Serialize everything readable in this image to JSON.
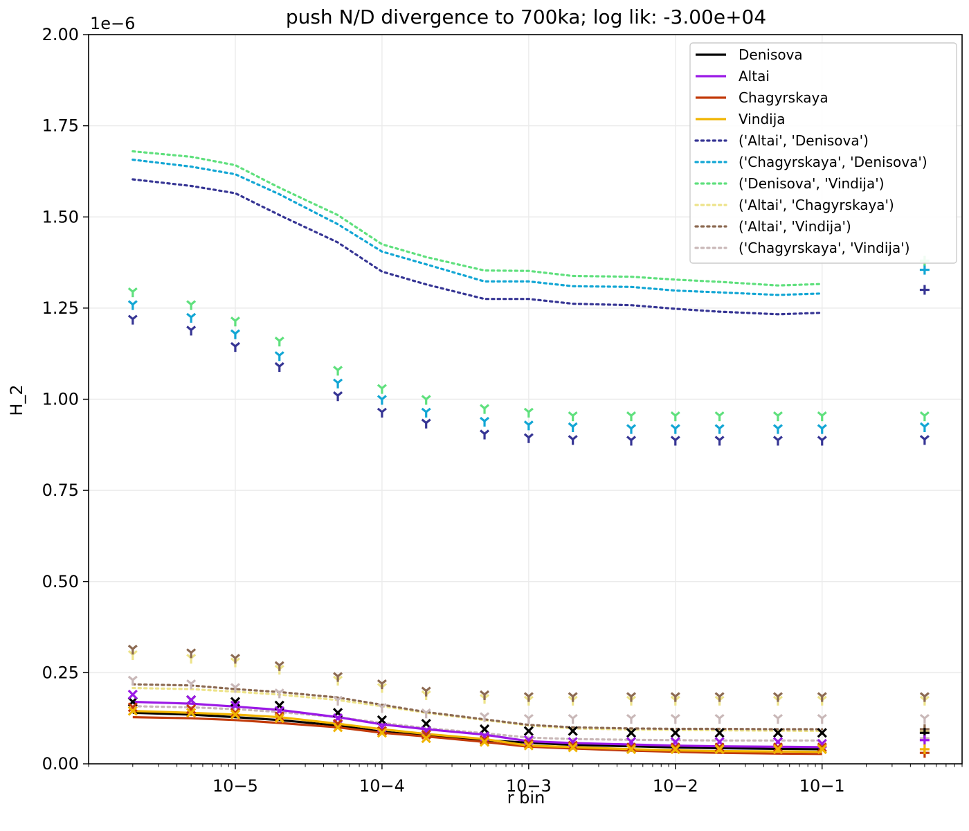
{
  "chart_data": {
    "type": "line",
    "title": "push N/D divergence to 700ka; log lik: -3.00e+04",
    "xlabel": "r bin",
    "ylabel": "H_2",
    "y_offset_text": "1e−6",
    "x_scale": "log",
    "xlim": [
      1e-06,
      0.9
    ],
    "ylim": [
      0,
      2.0
    ],
    "grid": true,
    "legend_position": "top-right",
    "x_tick_labels": [
      "10−5",
      "10−4",
      "10−3",
      "10−2",
      "10−1"
    ],
    "y_tick_labels": [
      "0.00",
      "0.25",
      "0.50",
      "0.75",
      "1.00",
      "1.25",
      "1.50",
      "1.75",
      "2.00"
    ],
    "x": [
      2e-06,
      5e-06,
      1e-05,
      2e-05,
      5e-05,
      0.0001,
      0.0002,
      0.0005,
      0.001,
      0.002,
      0.005,
      0.01,
      0.02,
      0.05,
      0.1
    ],
    "series": [
      {
        "name": "Denisova",
        "style": "solid",
        "color": "#000000",
        "model": [
          0.14,
          0.135,
          0.128,
          0.12,
          0.105,
          0.088,
          0.078,
          0.065,
          0.058,
          0.052,
          0.048,
          0.045,
          0.043,
          0.041,
          0.04
        ],
        "observed": [
          0.17,
          0.175,
          0.17,
          0.16,
          0.14,
          0.12,
          0.11,
          0.095,
          0.09,
          0.09,
          0.085,
          0.085,
          0.085,
          0.085,
          0.085
        ]
      },
      {
        "name": "Altai",
        "style": "solid",
        "color": "#9b19e6",
        "model": [
          0.17,
          0.165,
          0.157,
          0.148,
          0.128,
          0.108,
          0.095,
          0.08,
          0.062,
          0.057,
          0.053,
          0.05,
          0.048,
          0.047,
          0.046
        ],
        "observed": [
          0.19,
          0.175,
          0.16,
          0.145,
          0.125,
          0.1,
          0.09,
          0.075,
          0.065,
          0.06,
          0.06,
          0.06,
          0.06,
          0.06,
          0.055
        ]
      },
      {
        "name": "Chagyrskaya",
        "style": "solid",
        "color": "#c23b0a",
        "model": [
          0.128,
          0.125,
          0.12,
          0.112,
          0.1,
          0.085,
          0.075,
          0.06,
          0.047,
          0.042,
          0.036,
          0.033,
          0.03,
          0.028,
          0.027
        ],
        "observed": [
          0.155,
          0.15,
          0.14,
          0.13,
          0.11,
          0.09,
          0.08,
          0.065,
          0.055,
          0.05,
          0.045,
          0.045,
          0.045,
          0.045,
          0.045
        ]
      },
      {
        "name": "Vindija",
        "style": "solid",
        "color": "#f0b400",
        "model": [
          0.145,
          0.14,
          0.135,
          0.128,
          0.11,
          0.095,
          0.082,
          0.068,
          0.05,
          0.046,
          0.04,
          0.037,
          0.035,
          0.034,
          0.033
        ],
        "observed": [
          0.145,
          0.14,
          0.135,
          0.125,
          0.1,
          0.085,
          0.07,
          0.06,
          0.05,
          0.045,
          0.04,
          0.04,
          0.04,
          0.04,
          0.04
        ]
      },
      {
        "name": "('Altai', 'Denisova')",
        "style": "dotted",
        "color": "#363594",
        "model": [
          1.603,
          1.585,
          1.565,
          1.505,
          1.43,
          1.35,
          1.315,
          1.275,
          1.275,
          1.262,
          1.258,
          1.248,
          1.24,
          1.233,
          1.237
        ],
        "observed": [
          1.22,
          1.19,
          1.145,
          1.09,
          1.01,
          0.965,
          0.935,
          0.905,
          0.895,
          0.89,
          0.888,
          0.888,
          0.888,
          0.888,
          0.888
        ]
      },
      {
        "name": "('Chagyrskaya', 'Denisova')",
        "style": "dotted",
        "color": "#12a6d4",
        "model": [
          1.657,
          1.638,
          1.617,
          1.562,
          1.48,
          1.405,
          1.37,
          1.323,
          1.323,
          1.31,
          1.308,
          1.298,
          1.293,
          1.286,
          1.29
        ],
        "observed": [
          1.26,
          1.225,
          1.18,
          1.12,
          1.045,
          1.0,
          0.965,
          0.94,
          0.93,
          0.925,
          0.92,
          0.92,
          0.92,
          0.92,
          0.92
        ]
      },
      {
        "name": "('Denisova', 'Vindija')",
        "style": "dotted",
        "color": "#5fe07d",
        "model": [
          1.68,
          1.665,
          1.642,
          1.58,
          1.505,
          1.425,
          1.39,
          1.353,
          1.352,
          1.338,
          1.336,
          1.328,
          1.322,
          1.312,
          1.316
        ],
        "observed": [
          1.295,
          1.26,
          1.215,
          1.16,
          1.08,
          1.03,
          1.0,
          0.975,
          0.965,
          0.955,
          0.955,
          0.955,
          0.955,
          0.955,
          0.955
        ]
      },
      {
        "name": "('Altai', 'Chagyrskaya')",
        "style": "dotted",
        "color": "#ede38a",
        "model": [
          0.208,
          0.205,
          0.198,
          0.19,
          0.175,
          0.158,
          0.14,
          0.12,
          0.105,
          0.097,
          0.094,
          0.093,
          0.092,
          0.091,
          0.09
        ],
        "observed": [
          0.3,
          0.29,
          0.28,
          0.26,
          0.23,
          0.21,
          0.19,
          0.18,
          0.175,
          0.175,
          0.175,
          0.175,
          0.175,
          0.175,
          0.175
        ]
      },
      {
        "name": "('Altai', 'Vindija')",
        "style": "dotted",
        "color": "#8c6a52",
        "model": [
          0.218,
          0.215,
          0.205,
          0.197,
          0.182,
          0.162,
          0.142,
          0.122,
          0.107,
          0.1,
          0.097,
          0.096,
          0.096,
          0.095,
          0.095
        ],
        "observed": [
          0.315,
          0.305,
          0.29,
          0.27,
          0.24,
          0.22,
          0.2,
          0.19,
          0.185,
          0.185,
          0.185,
          0.185,
          0.185,
          0.185,
          0.185
        ]
      },
      {
        "name": "('Chagyrskaya', 'Vindija')",
        "style": "dotted",
        "color": "#c9b8b8",
        "model": [
          0.158,
          0.155,
          0.15,
          0.142,
          0.128,
          0.112,
          0.098,
          0.084,
          0.072,
          0.068,
          0.066,
          0.065,
          0.064,
          0.064,
          0.064
        ],
        "observed": [
          0.23,
          0.22,
          0.21,
          0.195,
          0.175,
          0.155,
          0.14,
          0.13,
          0.125,
          0.125,
          0.125,
          0.125,
          0.125,
          0.125,
          0.125
        ]
      }
    ],
    "extra_point": {
      "x": 0.5,
      "values": {
        "Denisova": 0.085,
        "Altai": 0.065,
        "Chagyrskaya": 0.03,
        "Vindija": 0.04,
        "('Altai', 'Denisova')": 1.3,
        "('Chagyrskaya', 'Denisova')": 1.355,
        "('Denisova', 'Vindija')": 1.38,
        "('Altai', 'Chagyrskaya')": 0.09,
        "('Altai', 'Vindija')": 0.095,
        "('Chagyrskaya', 'Vindija')": 0.07
      },
      "observed": {
        "('Altai', 'Denisova')": 0.89,
        "('Chagyrskaya', 'Denisova')": 0.925,
        "('Denisova', 'Vindija')": 0.955,
        "('Altai', 'Chagyrskaya')": 0.175,
        "('Altai', 'Vindija')": 0.185,
        "('Chagyrskaya', 'Vindija')": 0.125
      }
    }
  }
}
